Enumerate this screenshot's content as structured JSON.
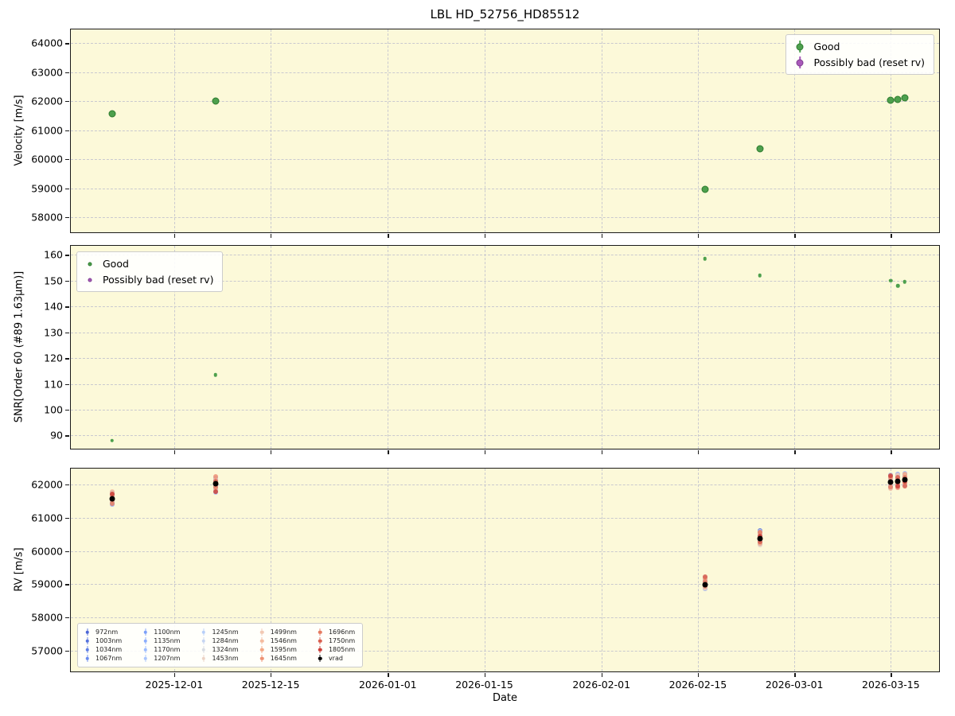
{
  "figure": {
    "title": "LBL HD_52756_HD85512",
    "xlabel": "Date",
    "plot_background": "#fcf9d9",
    "grid_color": "#c9c9cf",
    "spine_color": "#1a1a1a"
  },
  "x_axis": {
    "ticks": [
      "2025-12-01",
      "2025-12-15",
      "2026-01-01",
      "2026-01-15",
      "2026-02-01",
      "2026-02-15",
      "2026-03-01",
      "2026-03-15"
    ],
    "range": [
      "2025-11-16",
      "2026-03-22"
    ]
  },
  "quality_legend": {
    "good_label": "Good",
    "bad_label": "Possibly bad (reset rv)",
    "good_color": "#4da04d",
    "good_edge": "#2d7a2d",
    "bad_color": "#a959b9",
    "bad_edge": "#7e3d8f"
  },
  "chart_data": [
    {
      "type": "scatter",
      "ylabel": "Velocity [m/s]",
      "ylim": [
        57480,
        64470
      ],
      "yticks": [
        58000,
        59000,
        60000,
        61000,
        62000,
        63000,
        64000
      ],
      "legend_position": "upper right",
      "series": [
        {
          "name": "Good",
          "color": "#4da04d",
          "x": [
            "2025-11-22",
            "2025-12-07",
            "2026-02-16",
            "2026-02-24",
            "2026-03-15",
            "2026-03-16",
            "2026-03-17"
          ],
          "y": [
            61560,
            62010,
            58950,
            60370,
            62030,
            62060,
            62110
          ]
        },
        {
          "name": "Possibly bad (reset rv)",
          "color": "#a959b9",
          "x": [],
          "y": []
        }
      ]
    },
    {
      "type": "scatter",
      "ylabel": "SNR[Order 60 (#89 1.63μm)]",
      "ylim": [
        84.9,
        163.5
      ],
      "yticks": [
        90,
        100,
        110,
        120,
        130,
        140,
        150,
        160
      ],
      "legend_position": "upper left",
      "series": [
        {
          "name": "Good",
          "color": "#4da04d",
          "x": [
            "2025-11-22",
            "2025-12-07",
            "2026-02-16",
            "2026-02-24",
            "2026-03-15",
            "2026-03-16",
            "2026-03-17"
          ],
          "y": [
            88,
            113.5,
            158.5,
            152,
            150,
            148,
            149.5
          ]
        },
        {
          "name": "Possibly bad (reset rv)",
          "color": "#a959b9",
          "x": [],
          "y": []
        }
      ]
    },
    {
      "type": "scatter",
      "ylabel": "RV [m/s]",
      "ylim": [
        56370,
        62480
      ],
      "yticks": [
        57000,
        58000,
        59000,
        60000,
        61000,
        62000
      ],
      "legend_position": "lower left",
      "vrad_label": "vrad",
      "vrad_color": "#000000",
      "wavelength_series": [
        {
          "label": "972nm",
          "color": "#4c66d6"
        },
        {
          "label": "1003nm",
          "color": "#5572dd"
        },
        {
          "label": "1034nm",
          "color": "#5f7fe6"
        },
        {
          "label": "1067nm",
          "color": "#6a8bee"
        },
        {
          "label": "1100nm",
          "color": "#7b9ff9"
        },
        {
          "label": "1135nm",
          "color": "#8badfd"
        },
        {
          "label": "1170nm",
          "color": "#9abbff"
        },
        {
          "label": "1207nm",
          "color": "#a9c5fd"
        },
        {
          "label": "1245nm",
          "color": "#b7cff9"
        },
        {
          "label": "1284nm",
          "color": "#c6d5f1"
        },
        {
          "label": "1324nm",
          "color": "#d8dce3"
        },
        {
          "label": "1453nm",
          "color": "#ecd3c5"
        },
        {
          "label": "1499nm",
          "color": "#f2c9b4"
        },
        {
          "label": "1546nm",
          "color": "#f4bb9f"
        },
        {
          "label": "1595nm",
          "color": "#f3a886"
        },
        {
          "label": "1645nm",
          "color": "#ee9274"
        },
        {
          "label": "1696nm",
          "color": "#e57b61"
        },
        {
          "label": "1750nm",
          "color": "#d95f4e"
        },
        {
          "label": "1805nm",
          "color": "#ca3e37"
        }
      ],
      "observations": [
        {
          "date": "2025-11-22",
          "vrad": 61565,
          "spread": [
            61400,
            61790
          ]
        },
        {
          "date": "2025-12-07",
          "vrad": 62020,
          "spread": [
            61770,
            62230
          ]
        },
        {
          "date": "2026-02-16",
          "vrad": 58990,
          "spread": [
            58850,
            59210
          ]
        },
        {
          "date": "2026-02-24",
          "vrad": 60380,
          "spread": [
            60170,
            60600
          ]
        },
        {
          "date": "2026-03-15",
          "vrad": 62080,
          "spread": [
            61890,
            62300
          ]
        },
        {
          "date": "2026-03-16",
          "vrad": 62100,
          "spread": [
            61900,
            62310
          ]
        },
        {
          "date": "2026-03-17",
          "vrad": 62140,
          "spread": [
            61950,
            62340
          ]
        }
      ]
    }
  ]
}
